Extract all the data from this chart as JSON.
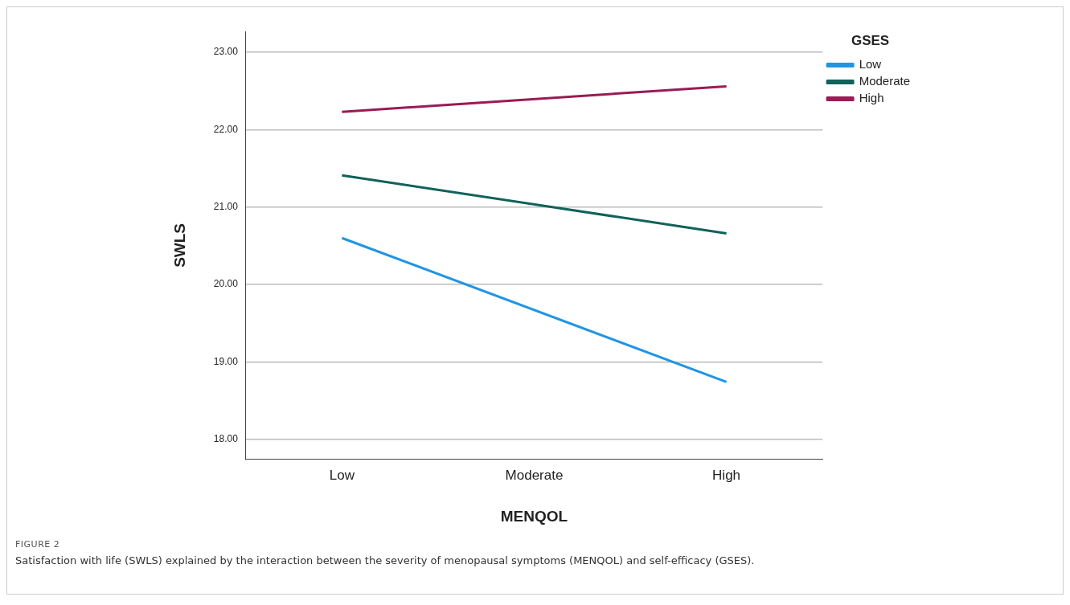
{
  "chart_data": {
    "type": "line",
    "xlabel": "MENQOL",
    "ylabel": "SWLS",
    "legend_title": "GSES",
    "legend": "top right",
    "grid": "y",
    "marker": "none",
    "line_style": "solid",
    "categories": [
      "Low",
      "Moderate",
      "High"
    ],
    "series": [
      {
        "name": "Low",
        "color": "#1f95e6",
        "values": [
          20.6,
          null,
          18.74
        ]
      },
      {
        "name": "Moderate",
        "color": "#10625a",
        "values": [
          21.41,
          null,
          20.66
        ]
      },
      {
        "name": "High",
        "color": "#9a1b55",
        "values": [
          22.23,
          null,
          22.56
        ]
      }
    ],
    "ylim": [
      17.74,
      23.27
    ],
    "yticks": [
      {
        "value": 18,
        "label": "18.00"
      },
      {
        "value": 19,
        "label": "19.00"
      },
      {
        "value": 20,
        "label": "20.00"
      },
      {
        "value": 21,
        "label": "21.00"
      },
      {
        "value": 22,
        "label": "22.00"
      },
      {
        "value": 23,
        "label": "23.00"
      }
    ],
    "annotations": [
      "FIGURE 2",
      "Satisfaction with life (SWLS) explained by the interaction between the severity of menopausal symptoms (MENQOL) and self-efficacy (GSES)."
    ]
  }
}
